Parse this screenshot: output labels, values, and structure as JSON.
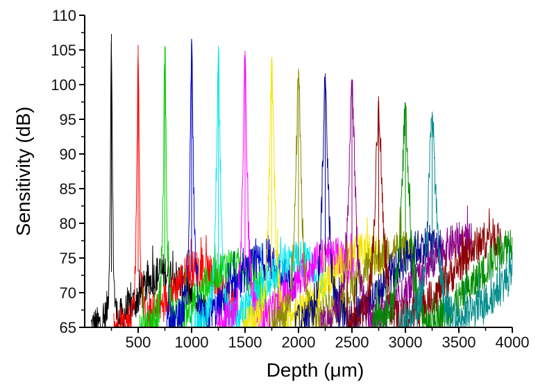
{
  "chart_data": {
    "type": "line",
    "xlabel": "Depth (μm)",
    "ylabel": "Sensitivity (dB)",
    "xlim": [
      0,
      4000
    ],
    "ylim": [
      65,
      110
    ],
    "x_ticks": [
      500,
      1000,
      1500,
      2000,
      2500,
      3000,
      3500,
      4000
    ],
    "y_ticks": [
      65,
      70,
      75,
      80,
      85,
      90,
      95,
      100,
      105,
      110
    ],
    "grid": false,
    "legend": "none",
    "noise_floor": 65,
    "series": [
      {
        "peak_depth": 250,
        "peak_db": 107.3,
        "color": "#000000"
      },
      {
        "peak_depth": 500,
        "peak_db": 105.7,
        "color": "#ff0000"
      },
      {
        "peak_depth": 750,
        "peak_db": 105.5,
        "color": "#00cc00"
      },
      {
        "peak_depth": 1000,
        "peak_db": 106.6,
        "color": "#0000cc"
      },
      {
        "peak_depth": 1250,
        "peak_db": 105.6,
        "color": "#00e5ee"
      },
      {
        "peak_depth": 1500,
        "peak_db": 104.9,
        "color": "#ff00ff"
      },
      {
        "peak_depth": 1750,
        "peak_db": 104.0,
        "color": "#f2e600"
      },
      {
        "peak_depth": 2000,
        "peak_db": 102.3,
        "color": "#8b8b00"
      },
      {
        "peak_depth": 2250,
        "peak_db": 101.6,
        "color": "#00008b"
      },
      {
        "peak_depth": 2500,
        "peak_db": 100.8,
        "color": "#8b008b"
      },
      {
        "peak_depth": 2750,
        "peak_db": 98.3,
        "color": "#8b0000"
      },
      {
        "peak_depth": 3000,
        "peak_db": 97.4,
        "color": "#008b00"
      },
      {
        "peak_depth": 3250,
        "peak_db": 96.1,
        "color": "#008b8b"
      }
    ]
  }
}
